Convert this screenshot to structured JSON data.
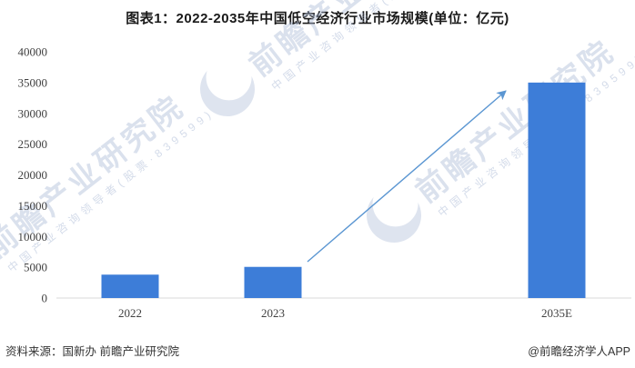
{
  "title": "图表1：2022-2035年中国低空经济行业市场规模(单位：亿元)",
  "chart_data": {
    "type": "bar",
    "title": "图表1：2022-2035年中国低空经济行业市场规模(单位：亿元)",
    "unit": "亿元",
    "categories": [
      "2022",
      "2023",
      "2035E"
    ],
    "values": [
      3800,
      5060,
      35000
    ],
    "xlabel": "",
    "ylabel": "",
    "ylim": [
      0,
      40000
    ],
    "yticks": [
      0,
      5000,
      10000,
      15000,
      20000,
      25000,
      30000,
      35000,
      40000
    ],
    "grid": false,
    "legend": "none",
    "annotations": [
      {
        "type": "arrow",
        "from_category": "2023",
        "to_category": "2035E",
        "meaning": "projected growth trend"
      }
    ]
  },
  "colors": {
    "bar": "#3D7DD8",
    "arrow": "#5B96D2",
    "axis_line": "#D9D9D9",
    "tick_text": "#404040",
    "title_text": "#1A1A1A",
    "footer_text": "#333333",
    "watermark": "#A9B8D5"
  },
  "watermark": {
    "brand": "前瞻产业研究院",
    "tagline": "中国产业咨询领导者(股票·839599)",
    "logo_icon": "qianzhan-crescent-logo"
  },
  "footer": {
    "source": "资料来源：国新办 前瞻产业研究院",
    "credit": "@前瞻经济学人APP"
  }
}
